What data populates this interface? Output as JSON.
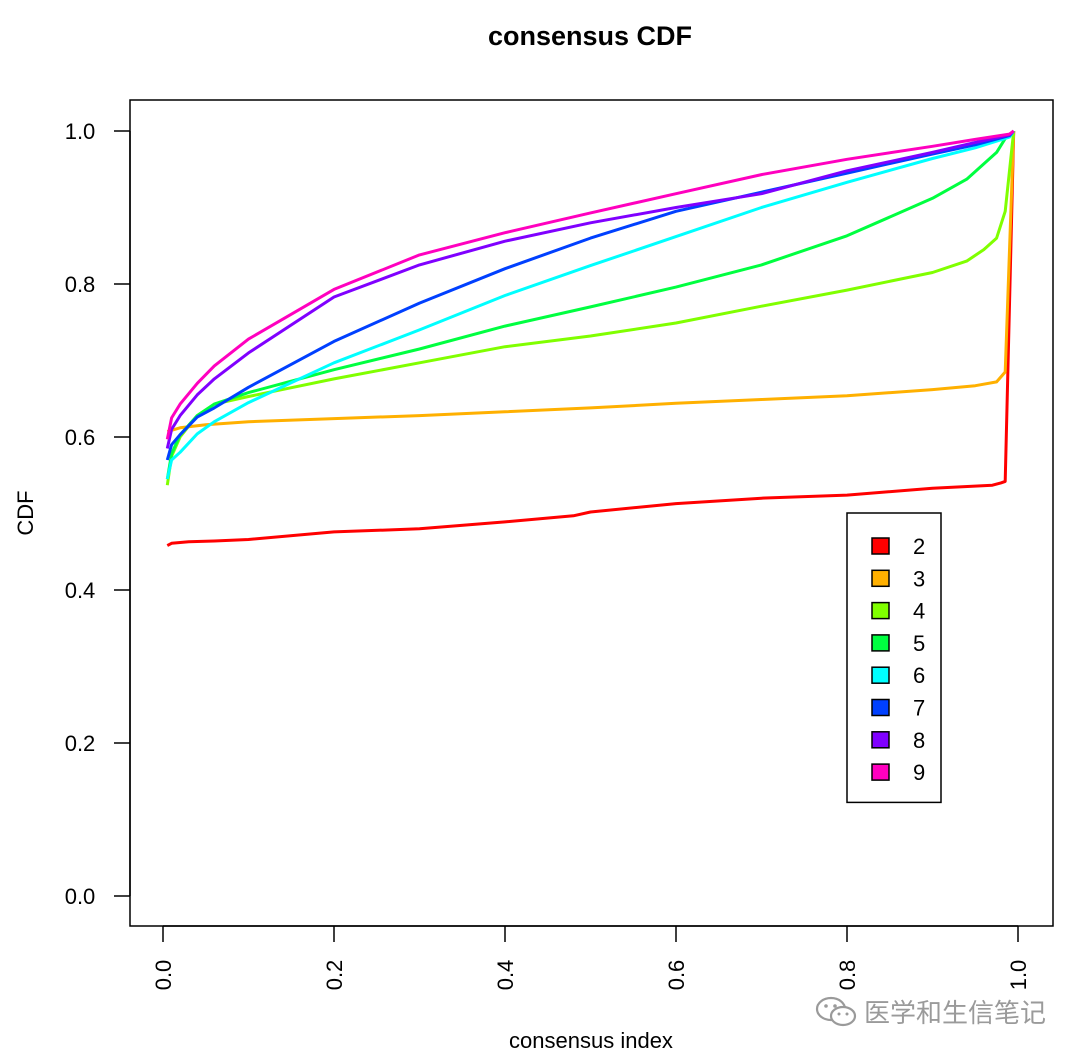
{
  "chart_data": {
    "type": "line",
    "title": "consensus CDF",
    "xlabel": "consensus index",
    "ylabel": "CDF",
    "xlim": [
      0.0,
      1.0
    ],
    "ylim": [
      0.0,
      1.0
    ],
    "xticks": [
      "0.0",
      "0.2",
      "0.4",
      "0.6",
      "0.8",
      "1.0"
    ],
    "yticks": [
      "0.0",
      "0.2",
      "0.4",
      "0.6",
      "0.8",
      "1.0"
    ],
    "legend_position": "center-right",
    "series": [
      {
        "name": "2",
        "color": "#ff0000",
        "points": [
          [
            0.005,
            0.458
          ],
          [
            0.01,
            0.461
          ],
          [
            0.03,
            0.463
          ],
          [
            0.06,
            0.464
          ],
          [
            0.1,
            0.466
          ],
          [
            0.2,
            0.476
          ],
          [
            0.3,
            0.48
          ],
          [
            0.4,
            0.489
          ],
          [
            0.48,
            0.497
          ],
          [
            0.5,
            0.502
          ],
          [
            0.6,
            0.513
          ],
          [
            0.7,
            0.52
          ],
          [
            0.8,
            0.524
          ],
          [
            0.9,
            0.533
          ],
          [
            0.97,
            0.537
          ],
          [
            0.98,
            0.54
          ],
          [
            0.985,
            0.542
          ],
          [
            0.995,
            1.0
          ]
        ]
      },
      {
        "name": "3",
        "color": "#ffb000",
        "points": [
          [
            0.005,
            0.607
          ],
          [
            0.02,
            0.612
          ],
          [
            0.05,
            0.616
          ],
          [
            0.1,
            0.62
          ],
          [
            0.2,
            0.624
          ],
          [
            0.3,
            0.628
          ],
          [
            0.4,
            0.633
          ],
          [
            0.5,
            0.638
          ],
          [
            0.6,
            0.644
          ],
          [
            0.7,
            0.649
          ],
          [
            0.8,
            0.654
          ],
          [
            0.9,
            0.662
          ],
          [
            0.95,
            0.667
          ],
          [
            0.975,
            0.672
          ],
          [
            0.985,
            0.685
          ],
          [
            0.995,
            1.0
          ]
        ]
      },
      {
        "name": "4",
        "color": "#80ff00",
        "points": [
          [
            0.005,
            0.537
          ],
          [
            0.01,
            0.575
          ],
          [
            0.02,
            0.6
          ],
          [
            0.04,
            0.628
          ],
          [
            0.06,
            0.643
          ],
          [
            0.1,
            0.653
          ],
          [
            0.2,
            0.676
          ],
          [
            0.3,
            0.697
          ],
          [
            0.4,
            0.718
          ],
          [
            0.5,
            0.732
          ],
          [
            0.6,
            0.749
          ],
          [
            0.7,
            0.771
          ],
          [
            0.8,
            0.792
          ],
          [
            0.9,
            0.815
          ],
          [
            0.94,
            0.83
          ],
          [
            0.96,
            0.845
          ],
          [
            0.975,
            0.86
          ],
          [
            0.985,
            0.895
          ],
          [
            0.995,
            1.0
          ]
        ]
      },
      {
        "name": "5",
        "color": "#00ff40",
        "points": [
          [
            0.005,
            0.545
          ],
          [
            0.01,
            0.578
          ],
          [
            0.02,
            0.603
          ],
          [
            0.04,
            0.628
          ],
          [
            0.06,
            0.643
          ],
          [
            0.1,
            0.658
          ],
          [
            0.2,
            0.688
          ],
          [
            0.3,
            0.715
          ],
          [
            0.4,
            0.745
          ],
          [
            0.5,
            0.77
          ],
          [
            0.6,
            0.796
          ],
          [
            0.7,
            0.825
          ],
          [
            0.8,
            0.863
          ],
          [
            0.9,
            0.912
          ],
          [
            0.94,
            0.937
          ],
          [
            0.96,
            0.957
          ],
          [
            0.975,
            0.972
          ],
          [
            0.985,
            0.99
          ],
          [
            0.995,
            1.0
          ]
        ]
      },
      {
        "name": "6",
        "color": "#00ffff",
        "points": [
          [
            0.005,
            0.545
          ],
          [
            0.01,
            0.57
          ],
          [
            0.02,
            0.58
          ],
          [
            0.04,
            0.604
          ],
          [
            0.06,
            0.62
          ],
          [
            0.1,
            0.645
          ],
          [
            0.2,
            0.697
          ],
          [
            0.3,
            0.74
          ],
          [
            0.4,
            0.785
          ],
          [
            0.5,
            0.824
          ],
          [
            0.6,
            0.862
          ],
          [
            0.7,
            0.9
          ],
          [
            0.8,
            0.933
          ],
          [
            0.9,
            0.964
          ],
          [
            0.95,
            0.978
          ],
          [
            0.99,
            0.992
          ],
          [
            0.995,
            1.0
          ]
        ]
      },
      {
        "name": "7",
        "color": "#0040ff",
        "points": [
          [
            0.005,
            0.57
          ],
          [
            0.01,
            0.59
          ],
          [
            0.02,
            0.603
          ],
          [
            0.04,
            0.626
          ],
          [
            0.06,
            0.638
          ],
          [
            0.1,
            0.665
          ],
          [
            0.2,
            0.725
          ],
          [
            0.3,
            0.775
          ],
          [
            0.4,
            0.82
          ],
          [
            0.5,
            0.86
          ],
          [
            0.6,
            0.895
          ],
          [
            0.7,
            0.92
          ],
          [
            0.8,
            0.945
          ],
          [
            0.9,
            0.97
          ],
          [
            0.95,
            0.982
          ],
          [
            0.99,
            0.994
          ],
          [
            0.995,
            1.0
          ]
        ]
      },
      {
        "name": "8",
        "color": "#8000ff",
        "points": [
          [
            0.005,
            0.585
          ],
          [
            0.01,
            0.61
          ],
          [
            0.02,
            0.628
          ],
          [
            0.04,
            0.655
          ],
          [
            0.06,
            0.676
          ],
          [
            0.1,
            0.71
          ],
          [
            0.2,
            0.783
          ],
          [
            0.3,
            0.825
          ],
          [
            0.4,
            0.856
          ],
          [
            0.5,
            0.88
          ],
          [
            0.6,
            0.9
          ],
          [
            0.7,
            0.918
          ],
          [
            0.8,
            0.948
          ],
          [
            0.9,
            0.972
          ],
          [
            0.95,
            0.985
          ],
          [
            0.99,
            0.995
          ],
          [
            0.995,
            1.0
          ]
        ]
      },
      {
        "name": "9",
        "color": "#ff00bf",
        "points": [
          [
            0.005,
            0.597
          ],
          [
            0.01,
            0.625
          ],
          [
            0.02,
            0.643
          ],
          [
            0.04,
            0.67
          ],
          [
            0.06,
            0.693
          ],
          [
            0.1,
            0.728
          ],
          [
            0.2,
            0.793
          ],
          [
            0.3,
            0.838
          ],
          [
            0.4,
            0.867
          ],
          [
            0.5,
            0.893
          ],
          [
            0.6,
            0.918
          ],
          [
            0.7,
            0.943
          ],
          [
            0.8,
            0.963
          ],
          [
            0.9,
            0.98
          ],
          [
            0.95,
            0.989
          ],
          [
            0.99,
            0.996
          ],
          [
            0.995,
            1.0
          ]
        ]
      }
    ]
  },
  "watermark": {
    "text": "医学和生信笔记",
    "icon": "wechat-icon"
  }
}
